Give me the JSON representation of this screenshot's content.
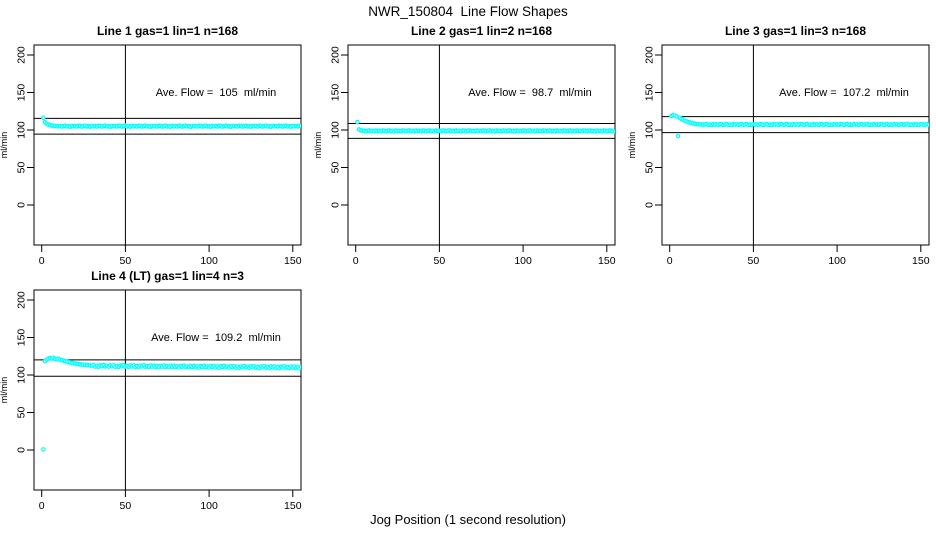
{
  "figure": {
    "title": "NWR_150804  Line Flow Shapes",
    "xlabel": "Jog Position (1 second resolution)"
  },
  "chart_data": [
    {
      "type": "scatter",
      "title": "Line 1 gas=1 lin=1 n=168",
      "annotation": "Ave. Flow =  105  ml/min",
      "ave_flow": 105,
      "n": 168,
      "ylabel": "ml/min",
      "x_ticks": [
        0,
        50,
        100,
        150
      ],
      "y_ticks": [
        0,
        50,
        100,
        150,
        200
      ],
      "xlim": [
        0,
        155
      ],
      "ylim": [
        0,
        200
      ],
      "ref_line_x": 50,
      "ref_lines_y": [
        115.5,
        94.5
      ],
      "marker": "open-circle",
      "marker_color": "#00FFFF",
      "x_start": 1,
      "x_step": 1,
      "y": [
        116.2,
        110.4,
        108.3,
        107.2,
        106.4,
        105.9,
        105.5,
        105.2,
        105.0,
        104.9,
        105.4,
        104.5,
        105.2,
        105.7,
        104.7,
        105.1,
        104.4,
        105.5,
        104.9,
        105.3,
        104.6,
        105.6,
        105.4,
        104.5,
        105.2,
        105.7,
        104.7,
        105.1,
        104.4,
        105.5,
        104.9,
        105.3,
        104.6,
        105.6,
        105.4,
        104.5,
        105.2,
        105.7,
        104.7,
        105.1,
        104.4,
        105.5,
        104.9,
        105.3,
        104.6,
        105.6,
        105.4,
        104.5,
        105.2,
        105.7,
        104.7,
        105.1,
        104.4,
        105.5,
        104.9,
        105.3,
        104.6,
        105.6,
        105.4,
        104.5,
        105.2,
        105.7,
        104.7,
        105.1,
        104.4,
        105.5,
        104.9,
        105.3,
        104.6,
        105.6,
        105.4,
        104.5,
        105.2,
        105.7,
        104.7,
        105.1,
        104.4,
        105.5,
        104.9,
        105.3,
        104.6,
        105.6,
        105.4,
        104.5,
        105.2,
        105.7,
        104.7,
        105.1,
        104.4,
        105.5,
        104.9,
        105.3,
        104.6,
        105.6,
        105.4,
        104.5,
        105.2,
        105.7,
        104.7,
        105.1,
        104.4,
        105.5,
        104.9,
        105.3,
        104.6,
        105.6,
        105.4,
        104.5,
        105.2,
        105.7,
        104.7,
        105.1,
        104.4,
        105.5,
        104.9,
        105.3,
        104.6,
        105.6,
        105.4,
        104.5,
        105.2,
        105.7,
        104.7,
        105.1,
        104.4,
        105.5,
        104.9,
        105.3,
        104.6,
        105.6,
        105.4,
        104.5,
        105.2,
        105.7,
        104.7,
        105.1,
        104.4,
        105.5,
        104.9,
        105.3,
        104.6,
        105.6,
        105.4,
        104.5,
        105.2,
        105.7,
        104.7,
        105.1,
        104.4,
        105.5,
        104.9,
        105.3,
        104.6,
        105.6,
        105.4,
        104.5,
        105.2,
        105.7,
        104.7,
        105.1,
        104.4,
        105.5,
        104.9,
        105.3,
        104.6,
        105.6,
        105.4,
        104.5
      ]
    },
    {
      "type": "scatter",
      "title": "Line 2 gas=1 lin=2 n=168",
      "annotation": "Ave. Flow =  98.7  ml/min",
      "ave_flow": 98.7,
      "n": 168,
      "ylabel": "ml/min",
      "x_ticks": [
        0,
        50,
        100,
        150
      ],
      "y_ticks": [
        0,
        50,
        100,
        150,
        200
      ],
      "xlim": [
        0,
        155
      ],
      "ylim": [
        0,
        200
      ],
      "ref_line_x": 50,
      "ref_lines_y": [
        108.6,
        88.8
      ],
      "marker": "open-circle",
      "marker_color": "#00FFFF",
      "x_start": 1,
      "x_step": 1,
      "y": [
        110.6,
        100.8,
        99.6,
        99.1,
        99.1,
        98.2,
        98.9,
        99.4,
        98.4,
        98.8,
        98.1,
        99.2,
        98.6,
        99.0,
        98.3,
        99.3,
        99.1,
        98.2,
        98.9,
        99.4,
        98.4,
        98.8,
        98.1,
        99.2,
        98.6,
        99.0,
        98.3,
        99.3,
        99.1,
        98.2,
        98.9,
        99.4,
        98.4,
        98.8,
        98.1,
        99.2,
        98.6,
        99.0,
        98.3,
        99.3,
        99.1,
        98.2,
        98.9,
        99.4,
        98.4,
        98.8,
        98.1,
        99.2,
        98.6,
        99.0,
        98.3,
        99.3,
        99.1,
        98.2,
        98.9,
        99.4,
        98.4,
        98.8,
        98.1,
        99.2,
        98.6,
        99.0,
        98.3,
        99.3,
        99.1,
        98.2,
        98.9,
        99.4,
        98.4,
        98.8,
        98.1,
        99.2,
        98.6,
        99.0,
        98.3,
        99.3,
        99.1,
        98.2,
        98.9,
        99.4,
        98.4,
        98.8,
        98.1,
        99.2,
        98.6,
        99.0,
        98.3,
        99.3,
        99.1,
        98.2,
        98.9,
        99.4,
        98.4,
        98.8,
        98.1,
        99.2,
        98.6,
        99.0,
        98.3,
        99.3,
        99.1,
        98.2,
        98.9,
        99.4,
        98.4,
        98.8,
        98.1,
        99.2,
        98.6,
        99.0,
        98.3,
        99.3,
        99.1,
        98.2,
        98.9,
        99.4,
        98.4,
        98.8,
        98.1,
        99.2,
        98.6,
        99.0,
        98.3,
        99.3,
        99.1,
        98.2,
        98.9,
        99.4,
        98.4,
        98.8,
        98.1,
        99.2,
        98.6,
        99.0,
        98.3,
        99.3,
        99.1,
        98.2,
        98.9,
        99.4,
        98.4,
        98.8,
        98.1,
        99.2,
        98.6,
        99.0,
        98.3,
        99.3,
        99.1,
        98.2,
        98.9,
        99.4,
        98.4,
        98.8,
        98.1,
        99.2,
        98.6,
        99.0,
        98.3,
        99.3,
        99.1,
        98.2,
        98.9,
        99.4,
        98.4,
        98.8,
        98.1,
        99.2
      ]
    },
    {
      "type": "scatter",
      "title": "Line 3 gas=1 lin=3 n=168",
      "annotation": "Ave. Flow =  107.2  ml/min",
      "ave_flow": 107.2,
      "n": 168,
      "ylabel": "ml/min",
      "x_ticks": [
        0,
        50,
        100,
        150
      ],
      "y_ticks": [
        0,
        50,
        100,
        150,
        200
      ],
      "xlim": [
        0,
        155
      ],
      "ylim": [
        0,
        200
      ],
      "ref_line_x": 50,
      "ref_lines_y": [
        117.9,
        96.5
      ],
      "marker": "open-circle",
      "marker_color": "#00FFFF",
      "x_start": 1,
      "x_step": 1,
      "y": [
        118.6,
        119.9,
        119.3,
        118.1,
        91.8,
        116.4,
        114.9,
        113.6,
        112.5,
        111.5,
        110.6,
        109.9,
        109.3,
        108.8,
        108.4,
        108.0,
        107.7,
        107.5,
        107.6,
        106.7,
        107.4,
        107.9,
        106.9,
        107.3,
        106.6,
        107.7,
        107.1,
        107.5,
        106.8,
        107.8,
        107.6,
        106.7,
        107.4,
        107.9,
        106.9,
        107.3,
        106.6,
        107.7,
        107.1,
        107.5,
        106.8,
        107.8,
        107.6,
        106.7,
        107.4,
        107.9,
        106.9,
        107.3,
        106.6,
        107.7,
        107.1,
        107.5,
        106.8,
        107.8,
        107.6,
        106.7,
        107.4,
        107.9,
        106.9,
        107.3,
        106.6,
        107.7,
        107.1,
        107.5,
        106.8,
        107.8,
        107.6,
        106.7,
        107.4,
        107.9,
        106.9,
        107.3,
        106.6,
        107.7,
        107.1,
        107.5,
        106.8,
        107.8,
        107.6,
        106.7,
        107.4,
        107.9,
        106.9,
        107.3,
        106.6,
        107.7,
        107.1,
        107.5,
        106.8,
        107.8,
        107.6,
        106.7,
        107.4,
        107.9,
        106.9,
        107.3,
        106.6,
        107.7,
        107.1,
        107.5,
        106.8,
        107.8,
        107.6,
        106.7,
        107.4,
        107.9,
        106.9,
        107.3,
        106.6,
        107.7,
        107.1,
        107.5,
        106.8,
        107.8,
        107.6,
        106.7,
        107.4,
        107.9,
        106.9,
        107.3,
        106.6,
        107.7,
        107.1,
        107.5,
        106.8,
        107.8,
        107.6,
        106.7,
        107.4,
        107.9,
        106.9,
        107.3,
        106.6,
        107.7,
        107.1,
        107.5,
        106.8,
        107.8,
        107.6,
        106.7,
        107.4,
        107.9,
        106.9,
        107.3,
        106.6,
        107.7,
        107.1,
        107.5,
        106.8,
        107.8,
        107.6,
        106.7,
        107.4,
        107.9,
        106.9,
        107.3,
        106.6,
        107.7,
        107.1,
        107.5,
        106.8,
        107.8,
        107.6,
        106.7,
        107.4,
        107.9,
        106.9,
        107.3
      ]
    },
    {
      "type": "scatter",
      "title": "Line 4 (LT) gas=1 lin=4 n=3",
      "annotation": "Ave. Flow =  109.2  ml/min",
      "ave_flow": 109.2,
      "n": 3,
      "ylabel": "ml/min",
      "x_ticks": [
        0,
        50,
        100,
        150
      ],
      "y_ticks": [
        0,
        50,
        100,
        150,
        200
      ],
      "xlim": [
        0,
        155
      ],
      "ylim": [
        0,
        200
      ],
      "ref_line_x": 50,
      "ref_lines_y": [
        120.1,
        98.3
      ],
      "marker": "open-circle",
      "marker_color": "#00FFFF",
      "x_start": 1,
      "x_step": 1,
      "y": [
        0.8,
        118.5,
        120.5,
        121.8,
        122.6,
        121.9,
        122.8,
        121.4,
        120.8,
        121.6,
        120.3,
        119.7,
        119.1,
        118.4,
        117.8,
        117.2,
        116.7,
        116.2,
        115.7,
        115.3,
        114.9,
        114.6,
        114.2,
        113.9,
        113.6,
        113.4,
        113.1,
        112.9,
        112.7,
        112.5,
        113.2,
        111.2,
        112.5,
        110.9,
        112.9,
        111.8,
        113.4,
        111.4,
        112.3,
        111.1,
        113.0,
        111.6,
        113.0,
        111.0,
        112.3,
        110.7,
        112.7,
        111.6,
        113.2,
        111.2,
        112.1,
        110.9,
        112.8,
        111.4,
        112.8,
        110.8,
        112.1,
        110.5,
        112.5,
        111.4,
        113.0,
        111.0,
        111.9,
        110.7,
        112.6,
        111.2,
        112.6,
        110.6,
        111.9,
        110.3,
        112.3,
        111.2,
        112.8,
        110.8,
        111.7,
        110.5,
        112.4,
        111.0,
        112.4,
        110.4,
        111.7,
        110.1,
        112.1,
        111.0,
        112.6,
        110.6,
        111.5,
        110.3,
        112.2,
        110.8,
        112.2,
        110.2,
        111.5,
        109.9,
        111.9,
        110.8,
        112.4,
        110.4,
        111.3,
        110.1,
        112.0,
        110.6,
        112.0,
        110.0,
        111.3,
        109.7,
        111.7,
        110.6,
        112.2,
        110.2,
        111.1,
        109.9,
        111.8,
        110.4,
        111.8,
        109.8,
        111.1,
        109.5,
        111.5,
        110.4,
        112.0,
        110.0,
        110.9,
        109.7,
        111.6,
        110.2,
        111.6,
        109.6,
        110.9,
        109.3,
        111.3,
        110.2,
        111.8,
        109.8,
        110.7,
        109.5,
        111.4,
        110.0,
        111.4,
        109.4,
        110.7,
        109.1,
        111.1,
        110.0,
        111.6,
        109.6,
        110.5,
        109.3,
        111.2,
        109.8,
        111.2,
        109.2,
        110.5,
        108.9,
        110.9,
        109.8,
        111.4,
        109.4,
        110.3,
        109.1,
        111.0,
        109.6,
        111.0,
        109.0,
        110.3,
        108.7,
        110.7,
        109.6
      ]
    }
  ]
}
